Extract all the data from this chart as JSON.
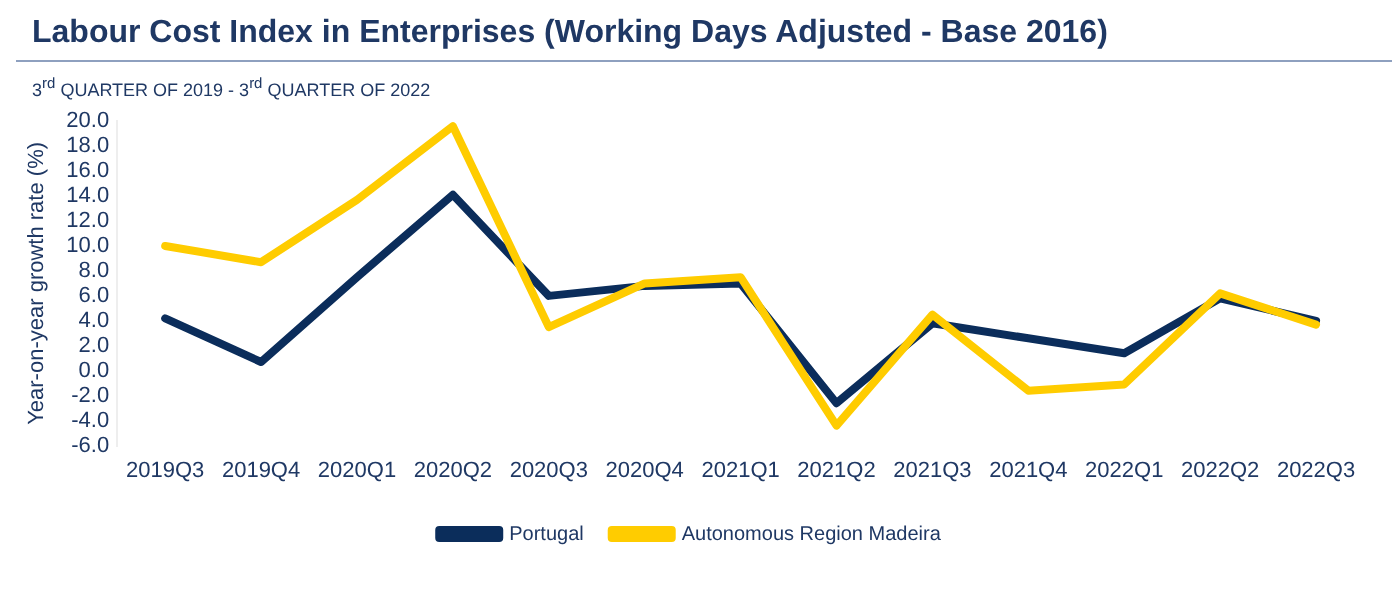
{
  "chart_data": {
    "type": "line",
    "title": "Labour Cost Index in Enterprises (Working Days Adjusted - Base 2016)",
    "subtitle": "3$^{rd}$ QUARTER OF 2019 - 3$^{rd}$ QUARTER OF 2022",
    "ylabel": "Year-on-year growth rate (%)",
    "categories": [
      "2019Q3",
      "2019Q4",
      "2020Q1",
      "2020Q2",
      "2020Q3",
      "2020Q4",
      "2021Q1",
      "2021Q2",
      "2021Q3",
      "2021Q4",
      "2022Q1",
      "2022Q2",
      "2022Q3"
    ],
    "series": [
      {
        "name": "Portugal",
        "color": "#0b2d5b",
        "values": [
          4.2,
          0.7,
          7.5,
          14.1,
          6.0,
          6.8,
          7.0,
          -2.6,
          3.8,
          2.6,
          1.4,
          5.8,
          4.0
        ]
      },
      {
        "name": "Autonomous Region Madeira",
        "color": "#ffcc00",
        "values": [
          10.0,
          8.7,
          13.7,
          19.6,
          3.5,
          7.0,
          7.5,
          -4.4,
          4.5,
          -1.6,
          -1.1,
          6.2,
          3.7
        ]
      }
    ],
    "ylim": [
      -6,
      20
    ],
    "yticks": [
      {
        "value": -6,
        "label": "-6.0"
      },
      {
        "value": -4,
        "label": "-4.0"
      },
      {
        "value": -2,
        "label": "-2.0"
      },
      {
        "value": 0,
        "label": "0.0"
      },
      {
        "value": 2,
        "label": "2.0"
      },
      {
        "value": 4,
        "label": "4.0"
      },
      {
        "value": 6,
        "label": "6.0"
      },
      {
        "value": 8,
        "label": "8.0"
      },
      {
        "value": 10,
        "label": "10.0"
      },
      {
        "value": 12,
        "label": "12.0"
      },
      {
        "value": 14,
        "label": "14.0"
      },
      {
        "value": 16,
        "label": "16.0"
      },
      {
        "value": 18,
        "label": "18.0"
      },
      {
        "value": 20,
        "label": "20.0"
      }
    ],
    "grid": false,
    "legend": "bottom",
    "marker": "none",
    "line_style": "solid"
  }
}
